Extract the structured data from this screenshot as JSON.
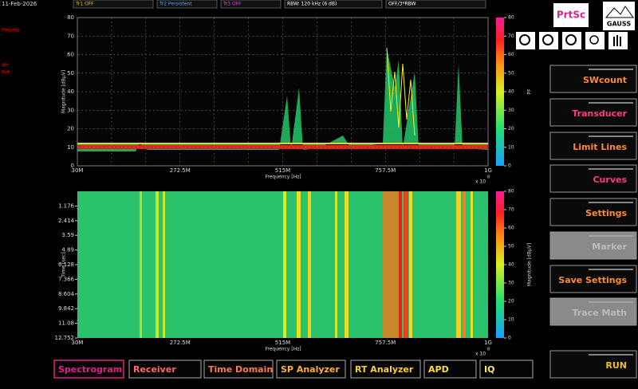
{
  "header": {
    "date": "11-Feb-2026",
    "left_labels": [
      "Preamp",
      "Att",
      "Ref"
    ],
    "dropdowns": [
      "Tr1 OFF",
      "Tr2 Persistent",
      "Tr3 OFF",
      "RBW: 120 kHz (6 dB)",
      "OFF/3*RBW"
    ]
  },
  "spectrum": {
    "y_label": "Magnitude [dBµV]",
    "x_label": "Frequency [Hz]",
    "ylim": [
      0,
      80
    ],
    "yticks": [
      0,
      10,
      20,
      30,
      40,
      50,
      60,
      70,
      80
    ],
    "xticks": [
      "30M",
      "272.5M",
      "515M",
      "757.5M",
      "1G"
    ],
    "x_multiplier": "x 10",
    "x_exponent": "8",
    "colorbar_label": "PF",
    "colorbar_ticks": [
      0,
      10,
      20,
      30,
      40,
      50,
      60,
      70,
      80
    ]
  },
  "spectrogram": {
    "y_label": "Time [sec]",
    "x_label": "Frequency [Hz]",
    "yticks": [
      "1.176",
      "2.414",
      "3.59",
      "4.89",
      "6.128",
      "7.366",
      "8.604",
      "9.842",
      "11.08",
      "12.752"
    ],
    "xticks": [
      "30M",
      "272.5M",
      "515M",
      "757.5M",
      "1G"
    ],
    "x_multiplier": "x 10",
    "x_exponent": "8",
    "colorbar_label": "Magnitude [dBµV]",
    "colorbar_ticks": [
      0,
      10,
      20,
      30,
      40,
      50,
      60,
      70,
      80
    ]
  },
  "toolbar": {
    "print": "PrtSc",
    "logo": "GAUSS"
  },
  "buttons": [
    "SWcount",
    "Transducer",
    "Limit Lines",
    "Curves",
    "Settings",
    "Marker",
    "Save Settings",
    "Trace Math"
  ],
  "run": "RUN",
  "tabs": [
    "Spectrogram",
    "Receiver",
    "Time Domain",
    "SP Analyzer",
    "RT Analyzer",
    "APD",
    "IQ"
  ]
}
